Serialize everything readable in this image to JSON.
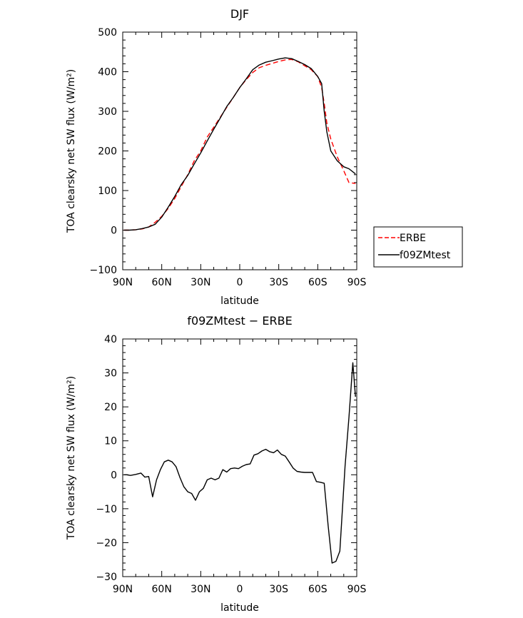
{
  "chart_data": [
    {
      "type": "line",
      "title": "DJF",
      "xlabel": "latitude",
      "ylabel": "TOA clearsky net SW flux (W/m²)",
      "xlim": [
        90,
        -90
      ],
      "ylim": [
        -100,
        500
      ],
      "xticks": [
        90,
        60,
        30,
        0,
        -30,
        -60,
        -90
      ],
      "xtick_labels": [
        "90N",
        "60N",
        "30N",
        "0",
        "30S",
        "60S",
        "90S"
      ],
      "yticks": [
        -100,
        0,
        100,
        200,
        300,
        400,
        500
      ],
      "ytick_labels": [
        "−100",
        "0",
        "100",
        "200",
        "300",
        "400",
        "500"
      ],
      "legend": {
        "position": "right",
        "entries": [
          "ERBE",
          "f09ZMtest"
        ]
      },
      "series": [
        {
          "name": "ERBE",
          "color": "#ff0000",
          "dash": "dashed",
          "x": [
            89,
            85,
            80,
            75,
            70,
            65,
            60,
            55,
            50,
            45,
            40,
            35,
            30,
            25,
            20,
            15,
            10,
            5,
            0,
            -5,
            -10,
            -15,
            -20,
            -25,
            -30,
            -35,
            -40,
            -45,
            -50,
            -55,
            -60,
            -63,
            -65,
            -67,
            -70,
            -75,
            -80,
            -84,
            -89
          ],
          "y": [
            0,
            0,
            1,
            3,
            8,
            20,
            35,
            55,
            80,
            110,
            140,
            175,
            200,
            235,
            260,
            285,
            310,
            335,
            360,
            380,
            398,
            410,
            416,
            421,
            426,
            430,
            431,
            425,
            415,
            405,
            388,
            360,
            320,
            270,
            230,
            185,
            150,
            120,
            118
          ]
        },
        {
          "name": "f09ZMtest",
          "color": "#000000",
          "dash": "solid",
          "x": [
            89,
            85,
            80,
            75,
            70,
            65,
            60,
            55,
            50,
            45,
            40,
            35,
            30,
            25,
            20,
            15,
            10,
            5,
            0,
            -5,
            -10,
            -15,
            -20,
            -25,
            -30,
            -35,
            -40,
            -45,
            -50,
            -55,
            -60,
            -63,
            -65,
            -67,
            -70,
            -75,
            -80,
            -84,
            -89
          ],
          "y": [
            0,
            0,
            1,
            4,
            8,
            15,
            33,
            58,
            85,
            115,
            138,
            167,
            195,
            225,
            255,
            283,
            312,
            335,
            360,
            382,
            405,
            417,
            424,
            428,
            432,
            435,
            433,
            426,
            418,
            408,
            388,
            370,
            300,
            248,
            200,
            175,
            160,
            155,
            142
          ]
        }
      ]
    },
    {
      "type": "line",
      "title": "f09ZMtest − ERBE",
      "xlabel": "latitude",
      "ylabel": "TOA clearsky net SW flux (W/m²)",
      "xlim": [
        90,
        -90
      ],
      "ylim": [
        -30,
        40
      ],
      "xticks": [
        90,
        60,
        30,
        0,
        -30,
        -60,
        -90
      ],
      "xtick_labels": [
        "90N",
        "60N",
        "30N",
        "0",
        "30S",
        "60S",
        "90S"
      ],
      "yticks": [
        -30,
        -20,
        -10,
        0,
        10,
        20,
        30,
        40
      ],
      "ytick_labels": [
        "−30",
        "−20",
        "−10",
        "0",
        "10",
        "20",
        "30",
        "40"
      ],
      "series": [
        {
          "color": "#000000",
          "dash": "solid",
          "x": [
            89,
            87,
            84,
            80,
            76,
            73,
            70,
            67,
            64,
            61,
            58,
            55,
            52,
            49,
            46,
            43,
            40,
            37,
            34,
            31,
            28,
            25,
            22,
            19,
            16,
            13,
            10,
            7,
            4,
            1,
            -2,
            -5,
            -8,
            -11,
            -14,
            -17,
            -20,
            -23,
            -26,
            -29,
            -32,
            -35,
            -38,
            -41,
            -44,
            -47,
            -50,
            -53,
            -56,
            -59,
            -62,
            -65,
            -68,
            -71,
            -74,
            -77,
            -81,
            -84,
            -87,
            -89
          ],
          "y": [
            0,
            0,
            -0.2,
            0.1,
            0.5,
            -0.7,
            -0.5,
            -6.5,
            -1.5,
            1.5,
            3.8,
            4.3,
            3.8,
            2.4,
            -0.8,
            -3.5,
            -5,
            -5.5,
            -7.5,
            -5,
            -4,
            -1.5,
            -1,
            -1.5,
            -1,
            1.5,
            0.8,
            1.8,
            2,
            1.8,
            2.5,
            3,
            3.2,
            5.8,
            6.2,
            7,
            7.5,
            6.8,
            6.5,
            7.3,
            6,
            5.5,
            3.8,
            2,
            1,
            0.8,
            0.7,
            0.7,
            0.7,
            -2,
            -2.2,
            -2.5,
            -15,
            -26,
            -25.5,
            -22.5,
            2.5,
            17,
            33,
            23
          ]
        }
      ]
    }
  ]
}
